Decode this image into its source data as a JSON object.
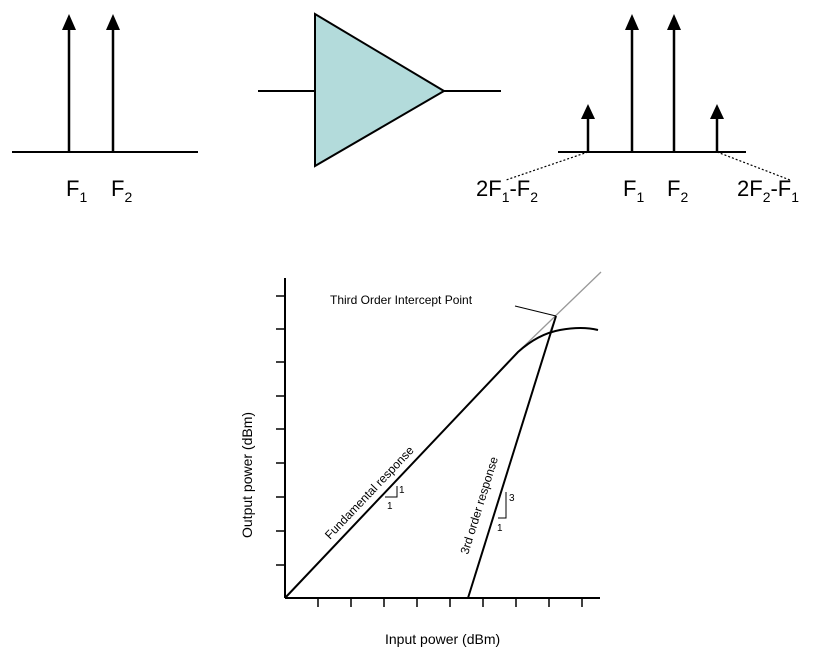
{
  "input_spectrum": {
    "label_f1": "F",
    "label_f1_sub": "1",
    "label_f2": "F",
    "label_f2_sub": "2"
  },
  "output_spectrum": {
    "im_low_prefix": "2F",
    "im_low_sub": "1",
    "im_low_suffix": "-F",
    "im_low_sub2": "2",
    "label_f1": "F",
    "label_f1_sub": "1",
    "label_f2": "F",
    "label_f2_sub": "2",
    "im_high_prefix": "2F",
    "im_high_sub": "2",
    "im_high_suffix": "-F",
    "im_high_sub2": "1"
  },
  "amplifier": {
    "fill_color": "#b3dbdb"
  },
  "plot": {
    "xlabel": "Input power (dBm)",
    "ylabel": "Output power (dBm)",
    "intercept_label": "Third Order Intercept Point",
    "fundamental_label": "Fundamental response",
    "third_order_label": "3rd order response",
    "fund_slope_rise": "1",
    "fund_slope_run": "1",
    "third_slope_rise": "3",
    "third_slope_run": "1"
  }
}
